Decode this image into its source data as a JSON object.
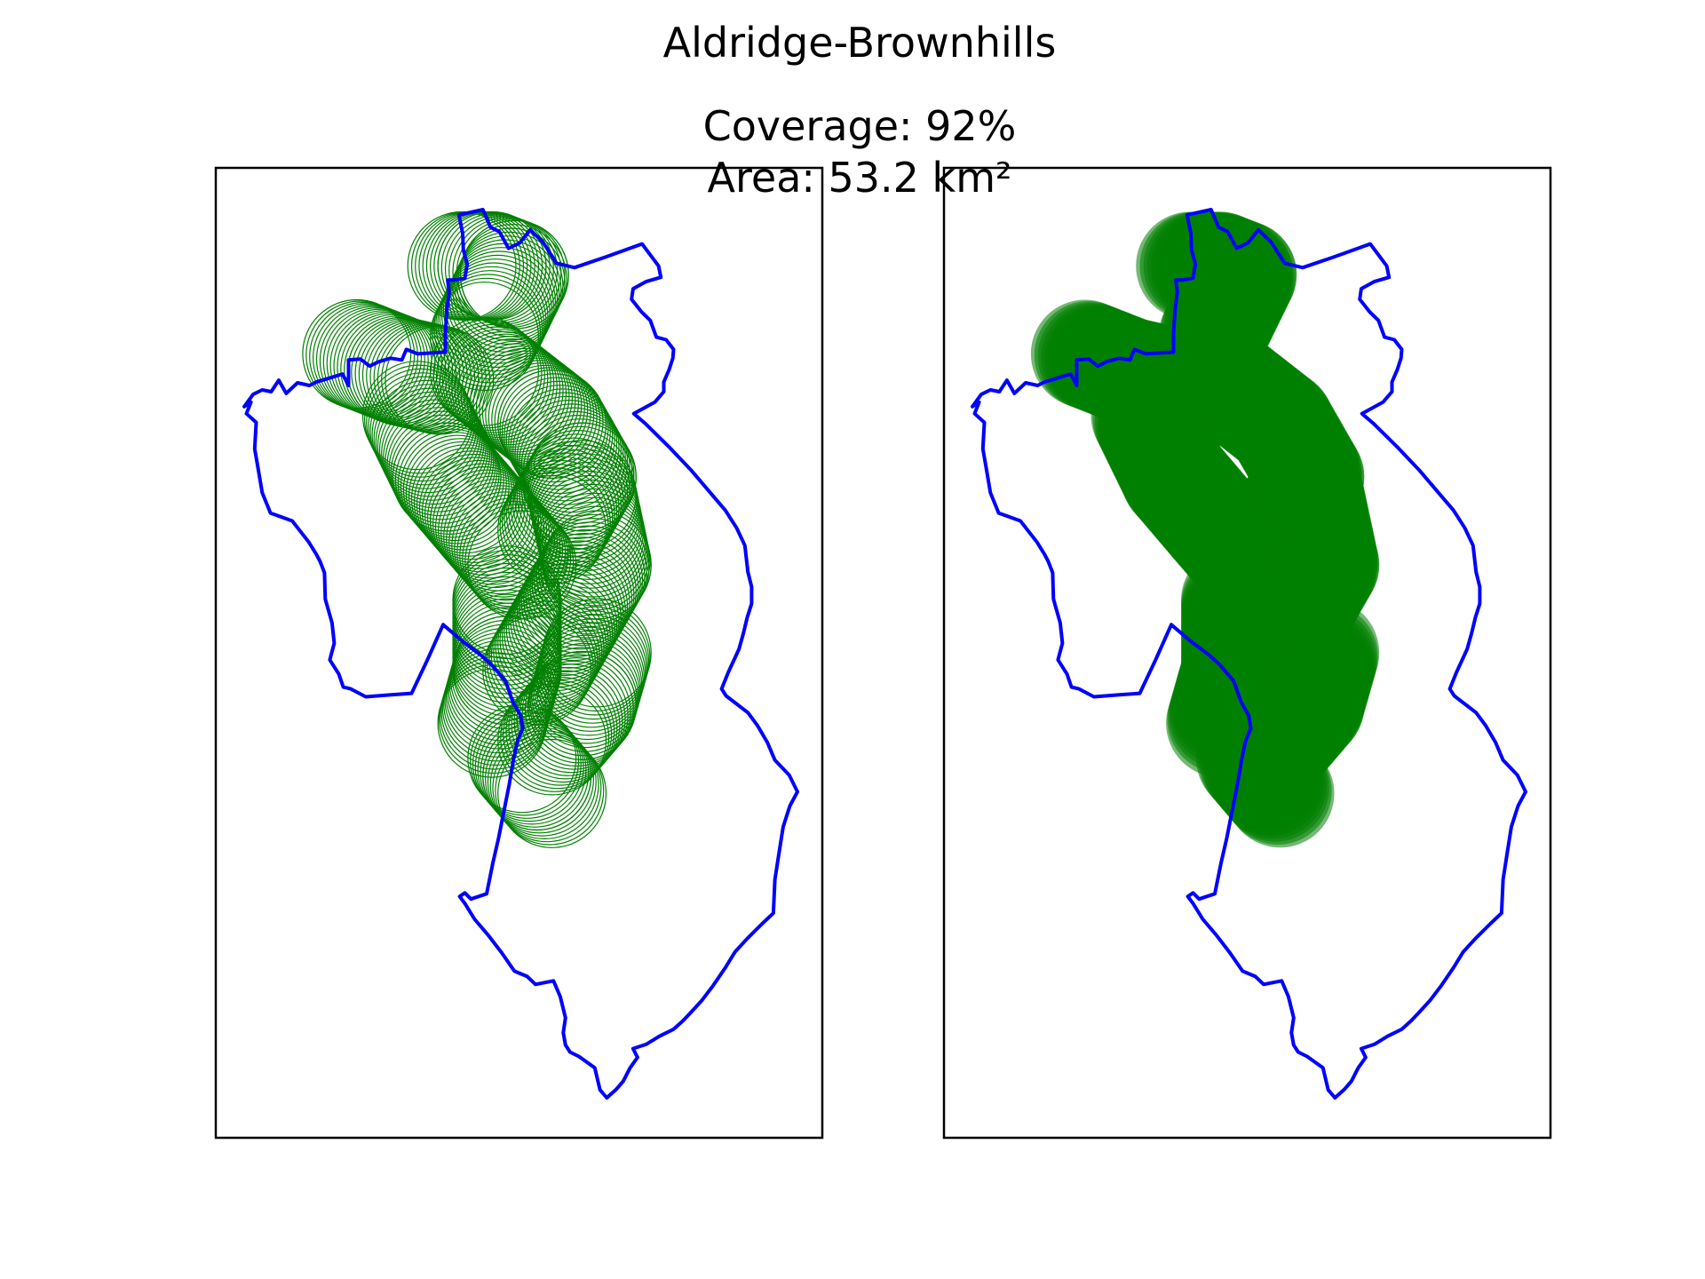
{
  "figure": {
    "title": "Aldridge-Brownhills",
    "coverage_text": "Coverage: 92%",
    "area_text": "Area: 53.2 km²",
    "coverage_percent": 92,
    "area_km2": 53.2
  },
  "panels": [
    {
      "id": "left",
      "style": "circle-outlines"
    },
    {
      "id": "right",
      "style": "filled-circles"
    }
  ],
  "colors": {
    "boundary": "#0000ff",
    "coverage": "#008000",
    "axes_frame": "#000000",
    "background": "#ffffff"
  }
}
